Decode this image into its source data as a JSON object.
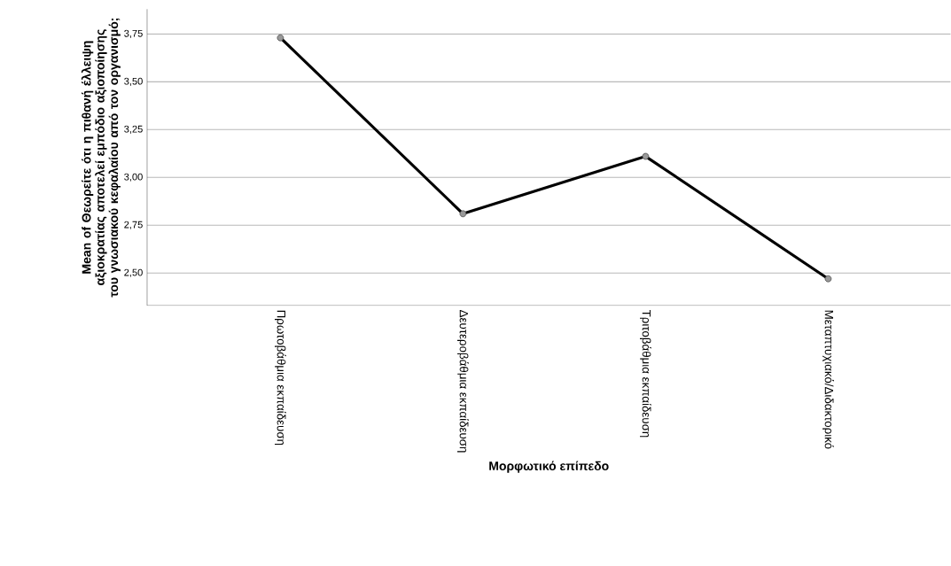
{
  "chart_data": {
    "type": "line",
    "xlabel": "Μορφωτικό επίπεδο",
    "ylabel": "Mean of Θεωρείτε ότι η πιθανή έλλειψη αξιοκρατίας αποτελεί εμπόδιο αξιοποίησης του γνωσιακού κεφαλαίου από τον οργανισμό;",
    "categories": [
      "Πρωτοβάθμια εκπαίδευση",
      "Δευτεροβάθμια εκπαίδευση",
      "Τριτοβάθμια εκπαίδευση",
      "Μεταπτυχιακό/Διδακτορικό"
    ],
    "series": [
      {
        "color": "#000000",
        "values": [
          3.73,
          2.81,
          3.11,
          2.47
        ]
      }
    ],
    "ylim": [
      2.33,
      3.88
    ],
    "yticks": [
      {
        "value": 2.5,
        "label": "2,50"
      },
      {
        "value": 2.75,
        "label": "2,75"
      },
      {
        "value": 3.0,
        "label": "3,00"
      },
      {
        "value": 3.25,
        "label": "3,25"
      },
      {
        "value": 3.5,
        "label": "3,50"
      },
      {
        "value": 3.75,
        "label": "3,75"
      }
    ],
    "grid": "y",
    "marker": "circle",
    "line_style": "solid"
  }
}
